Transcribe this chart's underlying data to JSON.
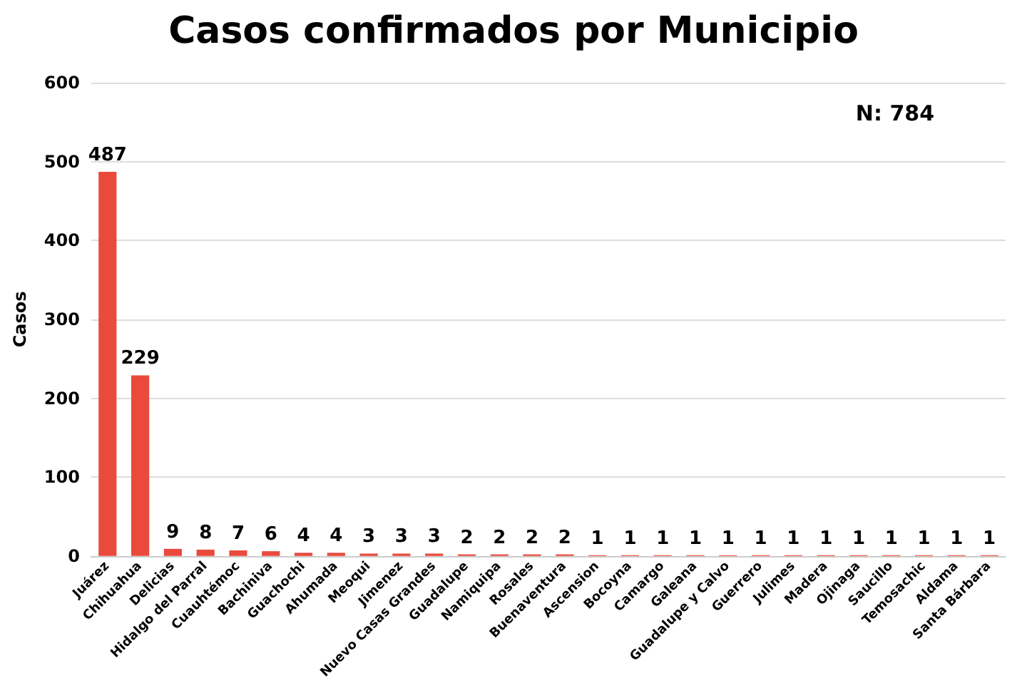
{
  "chart_data": {
    "type": "bar",
    "title": "Casos confirmados por Municipio",
    "ylabel": "Casos",
    "categories": [
      "Juárez",
      "Chihuahua",
      "Delicias",
      "Hidalgo del Parral",
      "Cuauhtémoc",
      "Bachiniva",
      "Guachochi",
      "Ahumada",
      "Meoqui",
      "Jimenez",
      "Nuevo Casas Grandes",
      "Guadalupe",
      "Namiquipa",
      "Rosales",
      "Buenaventura",
      "Ascension",
      "Bocoyna",
      "Camargo",
      "Galeana",
      "Guadalupe y Calvo",
      "Guerrero",
      "Julimes",
      "Madera",
      "Ojinaga",
      "Saucillo",
      "Temosachic",
      "Aldama",
      "Santa Bárbara"
    ],
    "values": [
      487,
      229,
      9,
      8,
      7,
      6,
      4,
      4,
      3,
      3,
      3,
      2,
      2,
      2,
      2,
      1,
      1,
      1,
      1,
      1,
      1,
      1,
      1,
      1,
      1,
      1,
      1,
      1
    ],
    "color": "#ea4a3c",
    "ylim": [
      0,
      600
    ],
    "yticks": [
      0,
      100,
      200,
      300,
      400,
      500,
      600
    ],
    "grid": "y",
    "data_labels": true,
    "annotations": [
      "N: 784"
    ]
  }
}
